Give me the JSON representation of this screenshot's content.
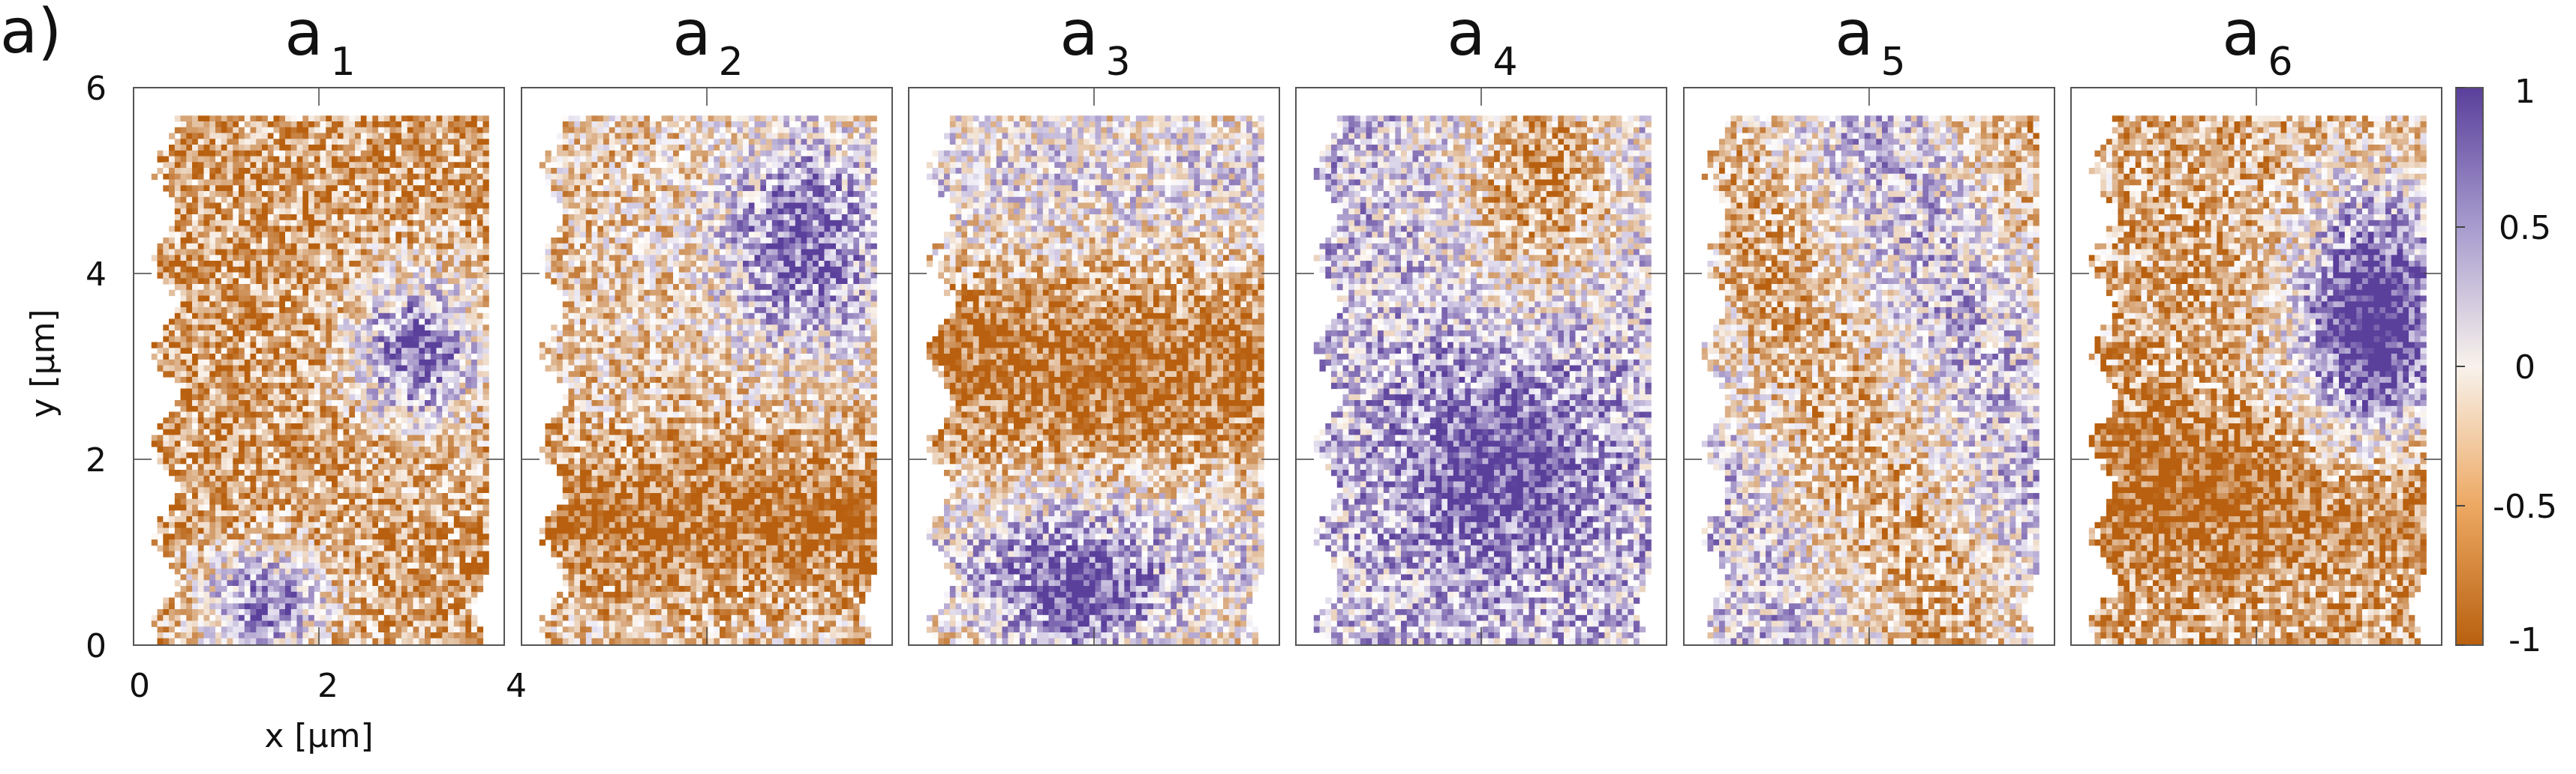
{
  "figure": {
    "panel_label": "a)"
  },
  "chart_data": {
    "type": "heatmap",
    "panels": [
      {
        "base": "a",
        "sub": "1"
      },
      {
        "base": "a",
        "sub": "2"
      },
      {
        "base": "a",
        "sub": "3"
      },
      {
        "base": "a",
        "sub": "4"
      },
      {
        "base": "a",
        "sub": "5"
      },
      {
        "base": "a",
        "sub": "6"
      }
    ],
    "xlabel": "x [μm]",
    "ylabel": "y [μm]",
    "xlim": [
      0,
      4
    ],
    "ylim": [
      0,
      6
    ],
    "xticks": [
      {
        "value": 0,
        "label": "0"
      },
      {
        "value": 2,
        "label": "2"
      },
      {
        "value": 4,
        "label": "4"
      }
    ],
    "yticks": [
      {
        "value": 0,
        "label": "0"
      },
      {
        "value": 2,
        "label": "2"
      },
      {
        "value": 4,
        "label": "4"
      },
      {
        "value": 6,
        "label": "6"
      }
    ],
    "colorbar": {
      "range": [
        -1,
        1
      ],
      "ticks": [
        {
          "value": 1,
          "label": "1"
        },
        {
          "value": 0.5,
          "label": "0.5"
        },
        {
          "value": 0,
          "label": "0"
        },
        {
          "value": -0.5,
          "label": "-0.5"
        },
        {
          "value": -1,
          "label": "-1"
        }
      ],
      "colors": [
        "#b8600f",
        "#ffffff",
        "#5a3f9b"
      ]
    },
    "grid": true
  }
}
